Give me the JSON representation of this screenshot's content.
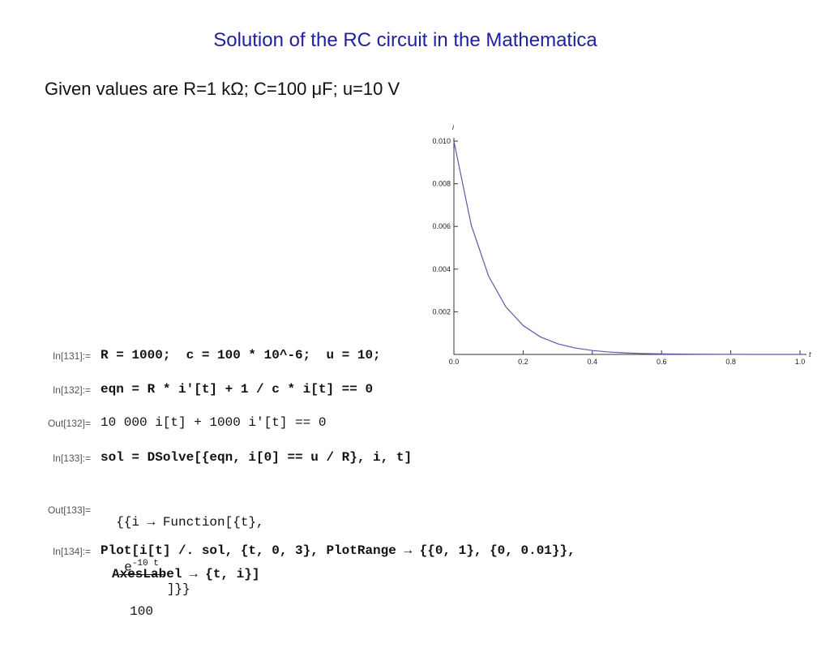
{
  "title": "Solution of the RC circuit in the Mathematica",
  "subtitle": "Given values are R=1 kΩ; C=100 μF; u=10 V",
  "chart_data": {
    "type": "line",
    "x_label": "t",
    "y_label": "i",
    "x": [
      0,
      0.05,
      0.1,
      0.15,
      0.2,
      0.25,
      0.3,
      0.35,
      0.4,
      0.45,
      0.5,
      0.55,
      0.6,
      0.7,
      0.8,
      0.9,
      1.0
    ],
    "series": [
      {
        "color": "#5a5aa8",
        "values": [
          0.01,
          0.006065,
          0.003679,
          0.002231,
          0.001353,
          0.000821,
          0.000498,
          0.000302,
          0.000183,
          0.000111,
          6.74e-05,
          4.09e-05,
          2.48e-05,
          9.1e-06,
          3.4e-06,
          1.2e-06,
          4.5e-07
        ]
      }
    ],
    "xlim": [
      0,
      1
    ],
    "ylim": [
      0,
      0.01
    ],
    "xticks": [
      {
        "value": 0,
        "label": "0.0"
      },
      0.2,
      0.4,
      0.6,
      0.8,
      {
        "value": 1,
        "label": "1.0"
      }
    ],
    "yticks": [
      0.002,
      0.004,
      0.006,
      0.008,
      {
        "value": 0.01,
        "label": "0.010"
      }
    ]
  },
  "cells": [
    {
      "label": "In[131]:=",
      "code": "R = 1000;  c = 100 * 10^-6;  u = 10;"
    },
    {
      "label": "In[132]:=",
      "code": "eqn = R * i'[t] + 1 / c * i[t] == 0"
    },
    {
      "label": "Out[132]=",
      "code": "10 000 i[t] + 1000 i'[t] == 0"
    },
    {
      "label": "In[133]:=",
      "code": "sol = DSolve[{eqn, i[0] == u / R}, i, t]"
    },
    {
      "label": "Out[133]=",
      "prefix": "{{i → Function[{t},",
      "base": "e",
      "exponent": "-10 t",
      "denominator": "100",
      "suffix": "]}}"
    },
    {
      "label": "In[134]:=",
      "code": "Plot[i[t] /. sol, {t, 0, 3}, PlotRange → {{0, 1}, {0, 0.01}},",
      "continuation": "AxesLabel → {t, i}]"
    }
  ]
}
